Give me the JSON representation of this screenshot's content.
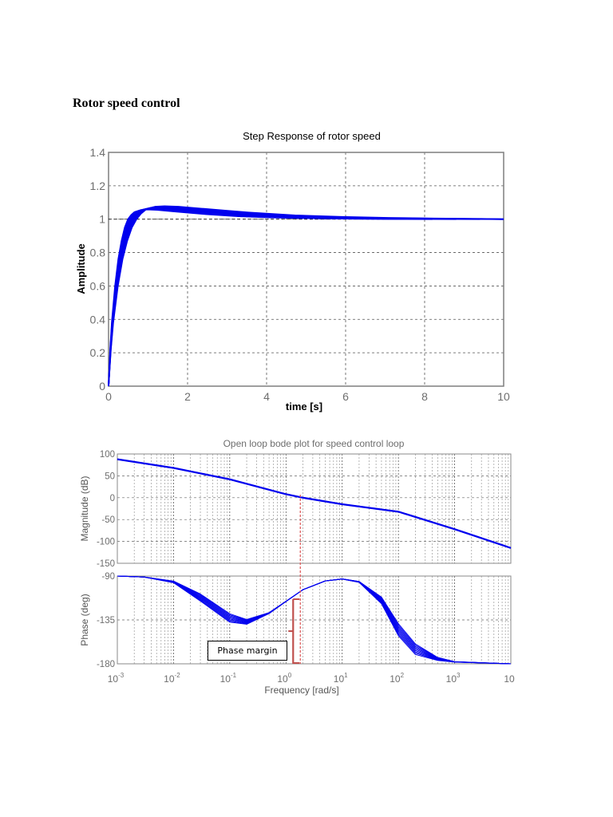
{
  "page": {
    "heading": "Rotor speed control"
  },
  "annotation": {
    "phase_margin_label": "Phase margin"
  },
  "colors": {
    "curve": "#0000ee",
    "grid": "#555555",
    "axis": "#7f7f7f",
    "phase_margin_marker": "#c0504d",
    "crossover_line": "#e06060"
  },
  "chart_data": [
    {
      "type": "line",
      "title": "Step Response of rotor speed",
      "xlabel": "time [s]",
      "ylabel": "Amplitude",
      "xlim": [
        0,
        10
      ],
      "ylim": [
        0,
        1.4
      ],
      "xticks": [
        "0",
        "2",
        "4",
        "6",
        "8",
        "10"
      ],
      "yticks": [
        "0",
        "0.2",
        "0.4",
        "0.6",
        "0.8",
        "1",
        "1.2",
        "1.4"
      ],
      "grid": true,
      "series": [
        {
          "name": "step response (family of curves)",
          "x": [
            0,
            0.05,
            0.1,
            0.2,
            0.3,
            0.4,
            0.5,
            0.6,
            0.7,
            0.8,
            1.0,
            1.2,
            1.5,
            2.0,
            2.5,
            3.0,
            4.0,
            5.0,
            6.0,
            7.0,
            8.0,
            10.0
          ],
          "y": [
            0,
            0.22,
            0.38,
            0.6,
            0.76,
            0.87,
            0.95,
            1.0,
            1.03,
            1.05,
            1.065,
            1.068,
            1.065,
            1.055,
            1.045,
            1.035,
            1.02,
            1.012,
            1.007,
            1.004,
            1.002,
            1.0
          ]
        }
      ],
      "reference_line": 1.0
    },
    {
      "type": "line",
      "title": "Open loop bode plot for speed control loop",
      "subplots": [
        {
          "name": "magnitude",
          "ylabel": "Magnitude (dB)",
          "ylim": [
            -150,
            100
          ],
          "yticks": [
            "100",
            "50",
            "0",
            "-50",
            "-100",
            "-150"
          ],
          "x": [
            0.001,
            0.01,
            0.1,
            1,
            2,
            10,
            100,
            1000,
            10000
          ],
          "y": [
            88,
            68,
            42,
            8,
            0,
            -15,
            -32,
            -72,
            -115
          ]
        },
        {
          "name": "phase",
          "ylabel": "Phase (deg)",
          "ylim": [
            -180,
            -90
          ],
          "yticks": [
            "-90",
            "-135",
            "-180"
          ],
          "x": [
            0.001,
            0.003,
            0.01,
            0.03,
            0.1,
            0.2,
            0.5,
            1,
            2,
            5,
            10,
            20,
            50,
            100,
            200,
            500,
            1000,
            10000
          ],
          "y": [
            -90,
            -91,
            -96,
            -112,
            -133,
            -137,
            -128,
            -116,
            -104,
            -95,
            -93,
            -96,
            -115,
            -145,
            -165,
            -175,
            -178,
            -180
          ]
        }
      ],
      "xlabel": "Frequency  [rad/s]",
      "xscale": "log",
      "xlim": [
        0.001,
        10000
      ],
      "xticks": [
        {
          "base": "10",
          "exp": "-3"
        },
        {
          "base": "10",
          "exp": "-2"
        },
        {
          "base": "10",
          "exp": "-1"
        },
        {
          "base": "10",
          "exp": "0"
        },
        {
          "base": "10",
          "exp": "1"
        },
        {
          "base": "10",
          "exp": "2"
        },
        {
          "base": "10",
          "exp": "3"
        },
        {
          "base": "10",
          "exp": ""
        }
      ],
      "grid": true,
      "annotations": {
        "crossover_frequency": 1.8,
        "phase_margin_deg_approx": 70,
        "label": "Phase margin"
      }
    }
  ]
}
